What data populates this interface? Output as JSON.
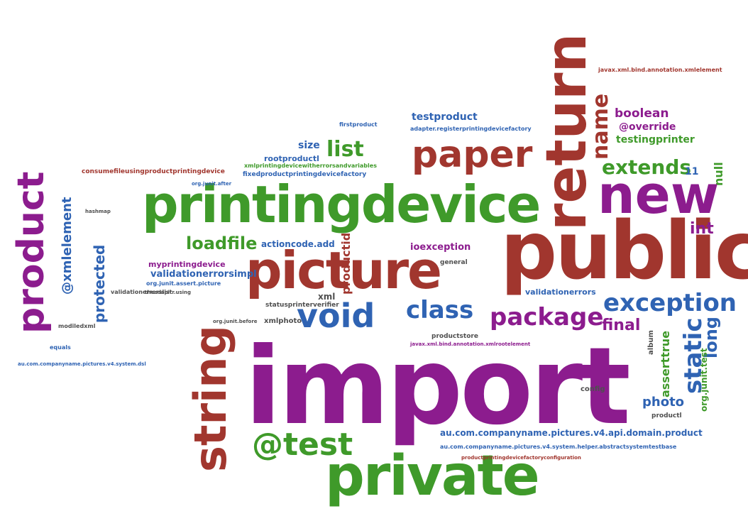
{
  "palette": {
    "green": "#3f9a2a",
    "purple": "#8c1c8e",
    "red": "#a1362e",
    "blue": "#2f63b3",
    "gray": "#4f4f4f",
    "teal": "#2f7f73"
  },
  "words": {
    "import": "import",
    "public": "public",
    "printingdevice": "printingdevice",
    "picture": "picture",
    "private": "private",
    "return": "return",
    "new": "new",
    "paper": "paper",
    "string": "string",
    "product": "product",
    "void": "void",
    "package": "package",
    "class": "class",
    "exception": "exception",
    "test": "@test",
    "protected": "protected",
    "xmlelement": "@xmlelement",
    "list": "list",
    "extends": "extends",
    "static": "static",
    "name": "name",
    "long": "long",
    "loadfile": "loadfile",
    "boolean": "boolean",
    "override": "@override",
    "testingprinter": "testingprinter",
    "int": "int",
    "final": "final",
    "photo": "photo",
    "assertTrue": "asserttrue",
    "null": "null",
    "size": "size",
    "rootproductl": "rootproductl",
    "testproduct": "testproduct",
    "actioncode": "actioncode.add",
    "ioexception": "ioexception",
    "validationerrorsimpl": "validationerrorsimpl",
    "validationerrors": "validationerrors",
    "productid": "productid",
    "xml": "xml",
    "xmlphoto": "xmlphoto",
    "config": "config",
    "album": "album",
    "productl": "productl",
    "orgjunittest": "org.junit.test",
    "statusprinterverifier": "statusprinterverifier",
    "general": "general",
    "auv4domainproduct": "au.com.companyname.pictures.v4.api.domain.product",
    "consumefile": "consumefileusingproductprintingdevice",
    "fixedproduct": "fixedproductprintingdevicefactory",
    "xmlprinting": "xmlprintingdevicewitherrorsandvariables",
    "myprintingdevice": "myprintingdevice",
    "auhelper": "au.com.companyname.pictures.v4.system.helper.abstractsystemtestbase",
    "productprinting": "productprintingdevicefactoryconfiguration",
    "jaxb": "javax.xml.bind.annotation.xmlelement",
    "jaxb2": "javax.xml.bind.annotation.xmlrootelement",
    "adapter": "adapter.registerprintingdevicefactory",
    "validationerrorslist": "validationerrorslist",
    "orgjunitassert": "org.junit.assert.picture",
    "theodapitr": "theodapitr.using",
    "productstore": "productstore",
    "auvsystem": "au.com.companyname.pictures.v4.system.dsl",
    "iterator": "11",
    "firstproduct": "firstproduct",
    "orgjunitafter": "org.junit.after",
    "modiledxml": "modiledxml",
    "equals": "equals",
    "orgjunitbefore": "org.junit.before",
    "hashmap": "hashmap"
  }
}
